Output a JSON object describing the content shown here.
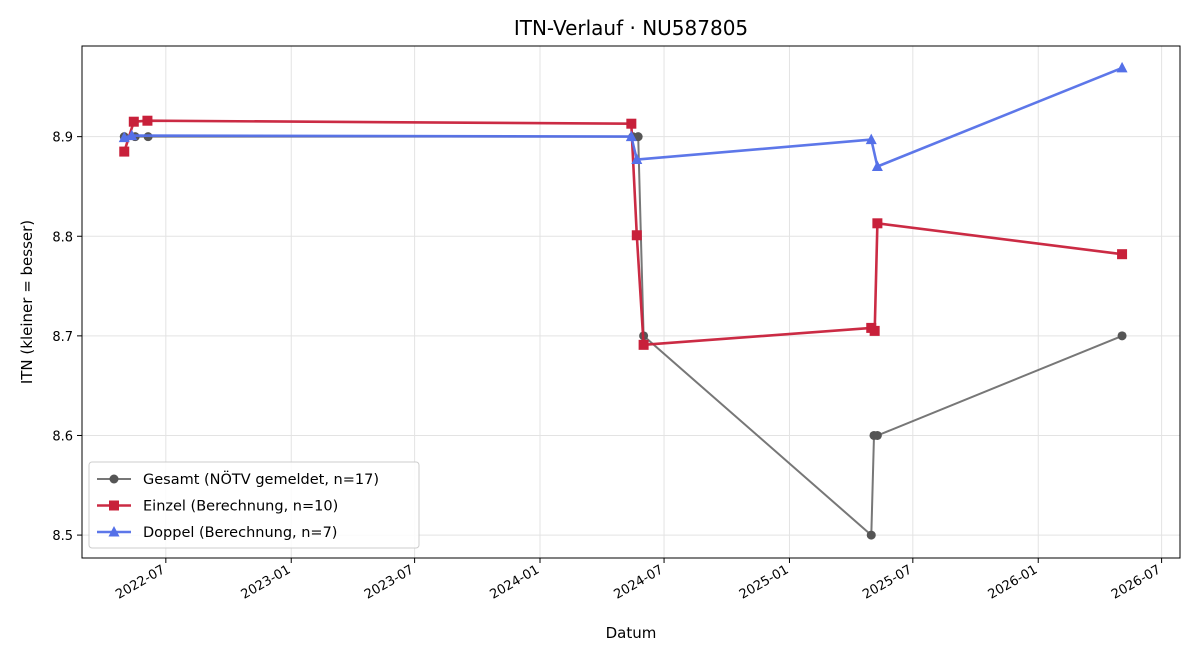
{
  "chart_data": {
    "type": "line",
    "title": "ITN-Verlauf · NU587805",
    "xlabel": "Datum",
    "ylabel": "ITN  (kleiner = besser)",
    "x_ticks": [
      "2022-07",
      "2023-01",
      "2023-07",
      "2024-01",
      "2024-07",
      "2025-01",
      "2025-07",
      "2026-01",
      "2026-07"
    ],
    "y_ticks": [
      "8.5",
      "8.6",
      "8.7",
      "8.8",
      "8.9"
    ],
    "xlim": [
      "2022-02-28",
      "2026-07-28"
    ],
    "ylim": [
      8.477,
      8.991
    ],
    "grid": true,
    "legend_position": "lower-left",
    "series": [
      {
        "name": "Gesamt (NÖTV gemeldet, n=17)",
        "color": "#555555",
        "marker": "circle",
        "points": [
          {
            "x": "2022-05-01",
            "y": 8.9
          },
          {
            "x": "2022-05-17",
            "y": 8.9
          },
          {
            "x": "2022-06-05",
            "y": 8.9
          },
          {
            "x": "2024-05-16",
            "y": 8.9
          },
          {
            "x": "2024-05-24",
            "y": 8.9
          },
          {
            "x": "2024-06-01",
            "y": 8.7
          },
          {
            "x": "2025-05-01",
            "y": 8.5
          },
          {
            "x": "2025-05-05",
            "y": 8.6
          },
          {
            "x": "2025-05-10",
            "y": 8.6
          },
          {
            "x": "2026-05-04",
            "y": 8.7
          }
        ]
      },
      {
        "name": "Einzel (Berechnung, n=10)",
        "color": "#c8203a",
        "marker": "square",
        "points": [
          {
            "x": "2022-05-01",
            "y": 8.885
          },
          {
            "x": "2022-05-15",
            "y": 8.915
          },
          {
            "x": "2022-06-04",
            "y": 8.916
          },
          {
            "x": "2024-05-14",
            "y": 8.913
          },
          {
            "x": "2024-05-22",
            "y": 8.801
          },
          {
            "x": "2024-06-01",
            "y": 8.691
          },
          {
            "x": "2025-05-01",
            "y": 8.708
          },
          {
            "x": "2025-05-06",
            "y": 8.705
          },
          {
            "x": "2025-05-10",
            "y": 8.813
          },
          {
            "x": "2026-05-04",
            "y": 8.782
          }
        ]
      },
      {
        "name": "Doppel (Berechnung, n=7)",
        "color": "#5470e8",
        "marker": "triangle",
        "points": [
          {
            "x": "2022-05-01",
            "y": 8.899
          },
          {
            "x": "2022-05-12",
            "y": 8.901
          },
          {
            "x": "2024-05-14",
            "y": 8.9
          },
          {
            "x": "2024-05-22",
            "y": 8.877
          },
          {
            "x": "2025-05-01",
            "y": 8.897
          },
          {
            "x": "2025-05-10",
            "y": 8.87
          },
          {
            "x": "2026-05-04",
            "y": 8.969
          }
        ]
      }
    ]
  }
}
